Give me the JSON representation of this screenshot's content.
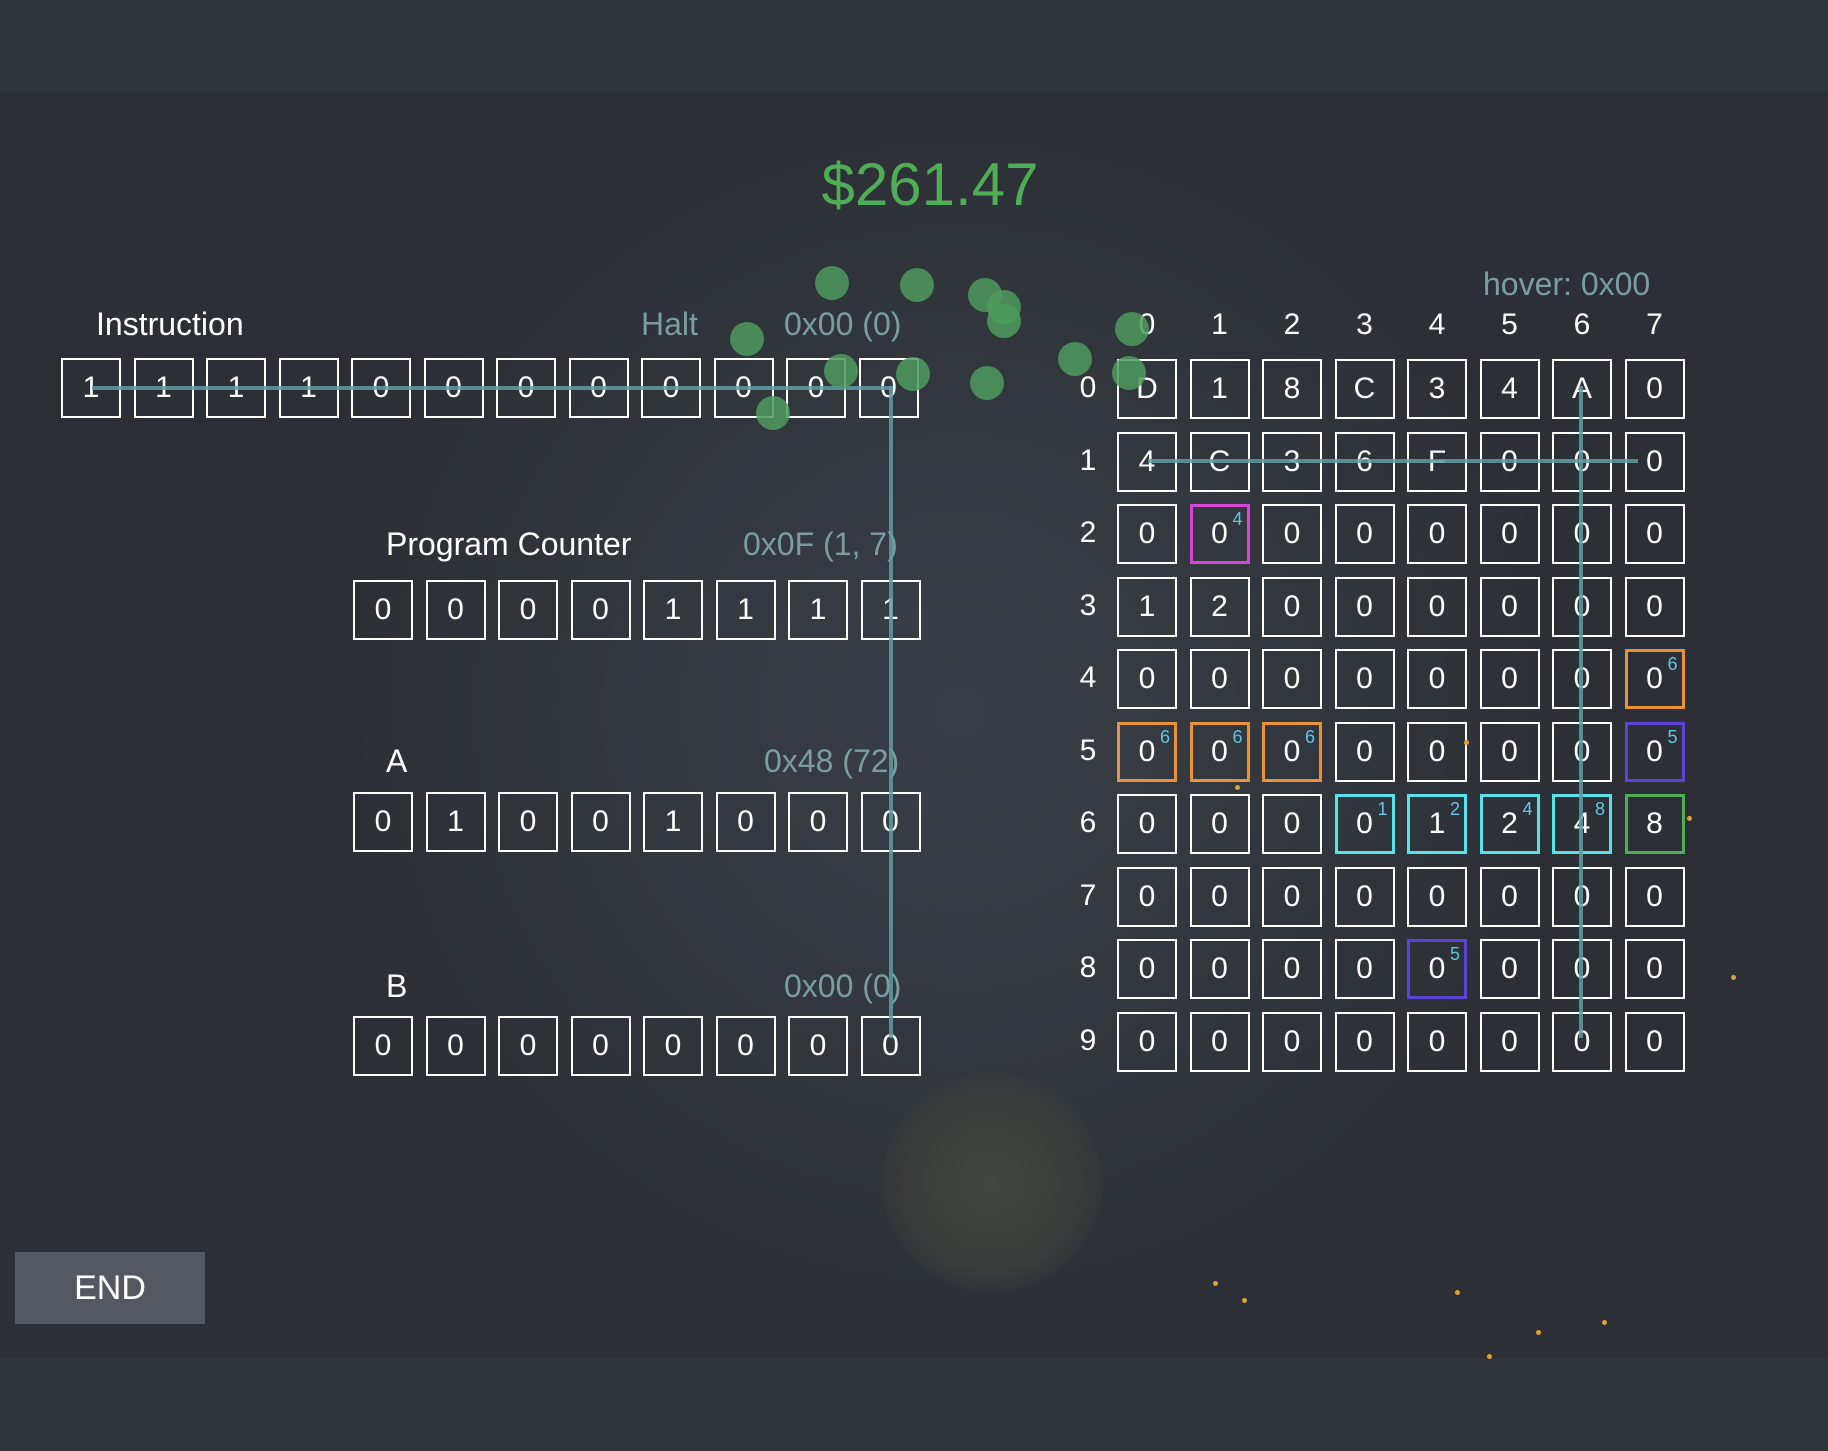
{
  "money": "$261.47",
  "hover": "hover: 0x00",
  "instruction": {
    "label": "Instruction",
    "op": "Halt",
    "value": "0x00 (0)",
    "bits": [
      "1",
      "1",
      "1",
      "1",
      "0",
      "0",
      "0",
      "0",
      "0",
      "0",
      "0",
      "0"
    ]
  },
  "pc": {
    "label": "Program Counter",
    "value": "0x0F (1, 7)",
    "bits": [
      "0",
      "0",
      "0",
      "0",
      "1",
      "1",
      "1",
      "1"
    ]
  },
  "reg_a": {
    "label": "A",
    "value": "0x48 (72)",
    "bits": [
      "0",
      "1",
      "0",
      "0",
      "1",
      "0",
      "0",
      "0"
    ]
  },
  "reg_b": {
    "label": "B",
    "value": "0x00 (0)",
    "bits": [
      "0",
      "0",
      "0",
      "0",
      "0",
      "0",
      "0",
      "0"
    ]
  },
  "memory": {
    "col_labels": [
      "0",
      "1",
      "2",
      "3",
      "4",
      "5",
      "6",
      "7"
    ],
    "row_labels": [
      "0",
      "1",
      "2",
      "3",
      "4",
      "5",
      "6",
      "7",
      "8",
      "9"
    ],
    "rows": [
      [
        "D",
        "1",
        "8",
        "C",
        "3",
        "4",
        "A",
        "0"
      ],
      [
        "4",
        "C",
        "3",
        "6",
        "F",
        "0",
        "0",
        "0"
      ],
      [
        "0",
        "0",
        "0",
        "0",
        "0",
        "0",
        "0",
        "0"
      ],
      [
        "1",
        "2",
        "0",
        "0",
        "0",
        "0",
        "0",
        "0"
      ],
      [
        "0",
        "0",
        "0",
        "0",
        "0",
        "0",
        "0",
        "0"
      ],
      [
        "0",
        "0",
        "0",
        "0",
        "0",
        "0",
        "0",
        "0"
      ],
      [
        "0",
        "0",
        "0",
        "0",
        "1",
        "2",
        "4",
        "8"
      ],
      [
        "0",
        "0",
        "0",
        "0",
        "0",
        "0",
        "0",
        "0"
      ],
      [
        "0",
        "0",
        "0",
        "0",
        "0",
        "0",
        "0",
        "0"
      ],
      [
        "0",
        "0",
        "0",
        "0",
        "0",
        "0",
        "0",
        "0"
      ]
    ],
    "highlights": [
      {
        "row": 2,
        "col": 1,
        "color": "#d548d5",
        "sup": "4"
      },
      {
        "row": 4,
        "col": 7,
        "color": "#e8923a",
        "sup": "6"
      },
      {
        "row": 5,
        "col": 0,
        "color": "#e8923a",
        "sup": "6"
      },
      {
        "row": 5,
        "col": 1,
        "color": "#e8923a",
        "sup": "6"
      },
      {
        "row": 5,
        "col": 2,
        "color": "#e8923a",
        "sup": "6"
      },
      {
        "row": 5,
        "col": 7,
        "color": "#5b43d8",
        "sup": "5"
      },
      {
        "row": 6,
        "col": 3,
        "color": "#5ae0e8",
        "sup": "1"
      },
      {
        "row": 6,
        "col": 4,
        "color": "#5ae0e8",
        "sup": "2"
      },
      {
        "row": 6,
        "col": 5,
        "color": "#5ae0e8",
        "sup": "4"
      },
      {
        "row": 6,
        "col": 6,
        "color": "#5ae0e8",
        "sup": "8"
      },
      {
        "row": 6,
        "col": 7,
        "color": "#4fad55",
        "sup": ""
      },
      {
        "row": 8,
        "col": 4,
        "color": "#5b43d8",
        "sup": "5"
      }
    ]
  },
  "end_label": "END"
}
